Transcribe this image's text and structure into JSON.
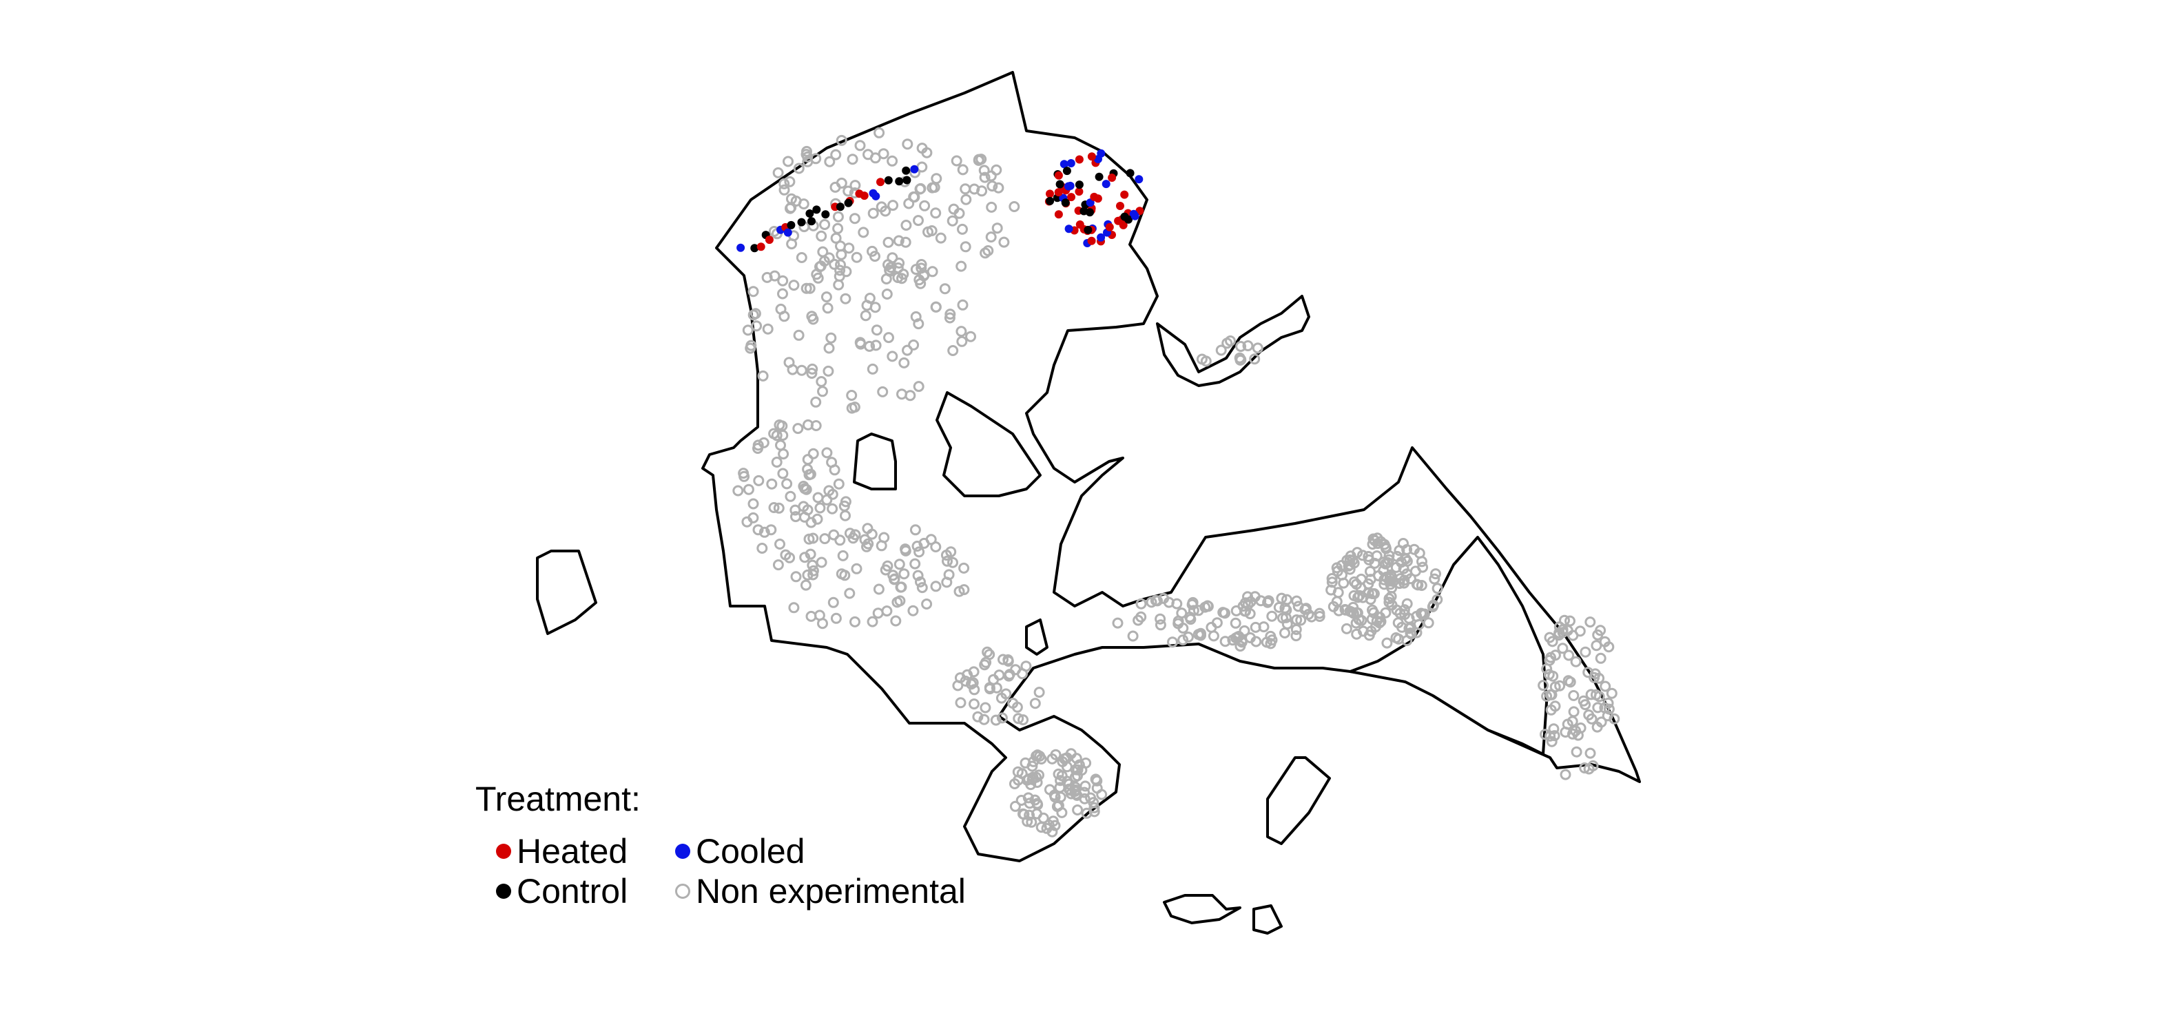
{
  "colors": {
    "heated": "#d40000",
    "cooled": "#0a14e6",
    "control": "#000000",
    "non_experimental": "#b0b0b0",
    "outline": "#000000"
  },
  "legend": {
    "title": "Treatment:",
    "items": [
      {
        "key": "heated",
        "label": "Heated",
        "filled": true
      },
      {
        "key": "cooled",
        "label": "Cooled",
        "filled": true
      },
      {
        "key": "control",
        "label": "Control",
        "filled": true
      },
      {
        "key": "non_experimental",
        "label": "Non experimental",
        "filled": false
      }
    ]
  }
}
